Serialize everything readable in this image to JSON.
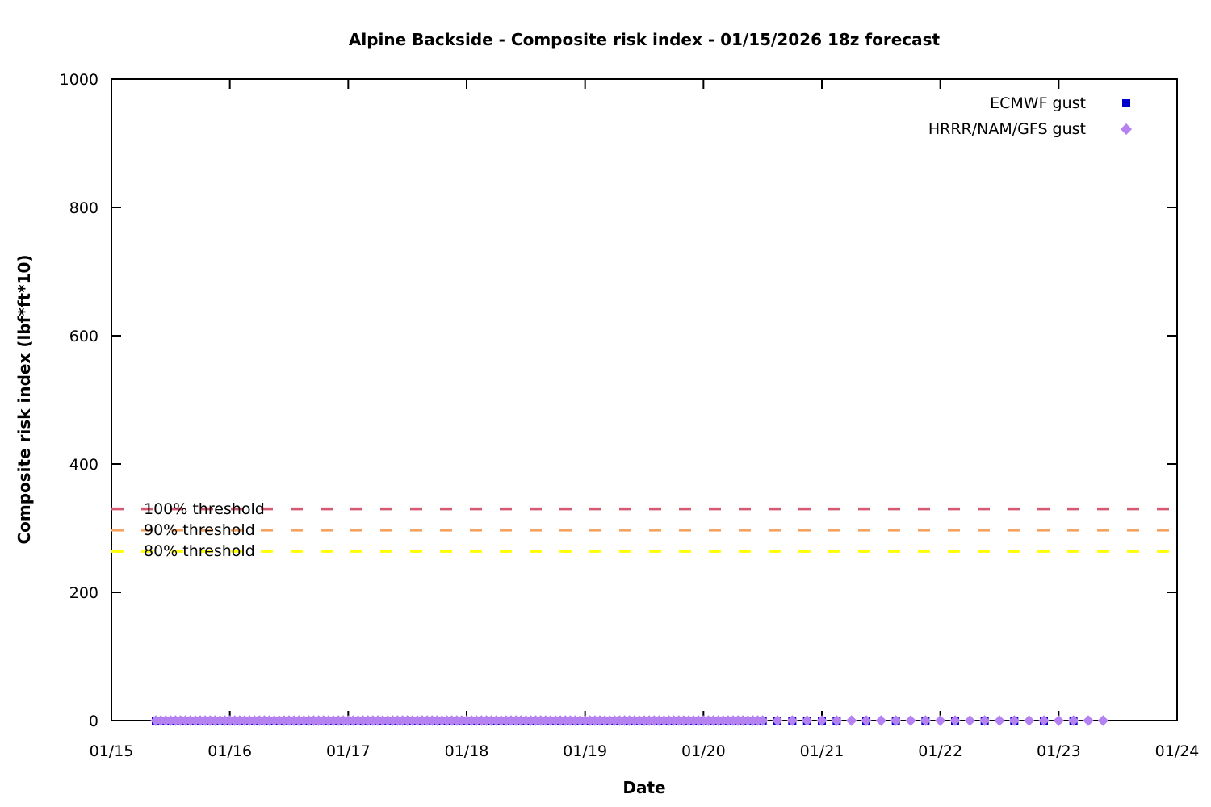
{
  "title": "Alpine Backside - Composite risk index - 01/15/2026 18z forecast",
  "chart_data": {
    "type": "scatter",
    "title": "Alpine Backside - Composite risk index - 01/15/2026 18z forecast",
    "xlabel": "Date",
    "ylabel": "Composite risk index (lbf*ft*10)",
    "grid": false,
    "legend_position": "inside top-right",
    "x_axis": {
      "unit": "days since 01/15 00:00",
      "range_days": [
        0,
        9
      ],
      "ticks": [
        {
          "label": "01/15",
          "day": 0
        },
        {
          "label": "01/16",
          "day": 1
        },
        {
          "label": "01/17",
          "day": 2
        },
        {
          "label": "01/18",
          "day": 3
        },
        {
          "label": "01/19",
          "day": 4
        },
        {
          "label": "01/20",
          "day": 5
        },
        {
          "label": "01/21",
          "day": 6
        },
        {
          "label": "01/22",
          "day": 7
        },
        {
          "label": "01/23",
          "day": 8
        },
        {
          "label": "01/24",
          "day": 9
        }
      ]
    },
    "y_axis": {
      "range": [
        0,
        1000
      ],
      "ticks": [
        0,
        200,
        400,
        600,
        800,
        1000
      ]
    },
    "thresholds": [
      {
        "label": "100% threshold",
        "value": 330,
        "color": "#d65871",
        "style": "dashed"
      },
      {
        "label": "90% threshold",
        "value": 297,
        "color": "#f4a460",
        "style": "dashed"
      },
      {
        "label": "80% threshold",
        "value": 264,
        "color": "#ffff00",
        "style": "dashed"
      }
    ],
    "series": [
      {
        "name": "ECMWF gust",
        "marker": "square",
        "color": "#0000cc",
        "y_value_all_points": 0,
        "x_hours_segments": [
          {
            "start_hour": 9,
            "end_hour": 131,
            "step_hours": 1
          },
          {
            "start_hour": 132,
            "end_hour": 147,
            "step_hours": 3
          },
          {
            "start_hour": 153,
            "end_hour": 195,
            "step_hours": 6
          }
        ]
      },
      {
        "name": "HRRR/NAM/GFS gust",
        "marker": "diamond",
        "color": "#b582f2",
        "y_value_all_points": 0,
        "x_hours_segments": [
          {
            "start_hour": 9,
            "end_hour": 131,
            "step_hours": 1
          },
          {
            "start_hour": 132,
            "end_hour": 201,
            "step_hours": 3
          }
        ]
      }
    ]
  }
}
